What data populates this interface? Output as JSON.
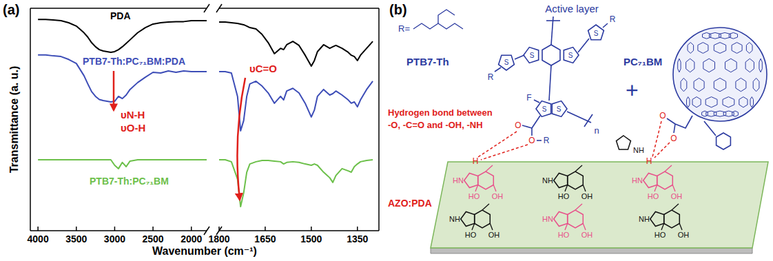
{
  "chart_data": [
    {
      "type": "line",
      "title": "(a)",
      "x_label": "Wavenumber (cm⁻¹)",
      "y_label": "Transmittance (a. u.)",
      "annotations": [
        "υN-H",
        "υO-H"
      ],
      "tick_labels": "x",
      "xlim": [
        4100,
        1800
      ],
      "ylim": [
        0,
        100
      ],
      "xticks": [
        4000,
        3500,
        3000,
        2500,
        2000
      ],
      "x": [
        4000,
        3900,
        3800,
        3700,
        3600,
        3500,
        3400,
        3350,
        3300,
        3250,
        3200,
        3150,
        3100,
        3050,
        3000,
        2950,
        2900,
        2850,
        2800,
        2700,
        2600,
        2500,
        2400,
        2300,
        2200,
        2100,
        2000,
        1900,
        1800
      ],
      "series": [
        {
          "name": "PDA",
          "color": "#000000",
          "values": [
            95,
            95,
            94.7,
            94.4,
            93.5,
            92,
            89,
            87,
            84.5,
            82.7,
            81.4,
            80.8,
            80.5,
            80.2,
            80.5,
            81.4,
            82.7,
            84.2,
            85.8,
            89,
            91.3,
            92.9,
            93.5,
            93.8,
            94,
            94,
            94.4,
            94.4,
            94.4
          ]
        },
        {
          "name": "PTB7-Th:PC₇₁BM:PDA",
          "color": "#3d4db7",
          "values": [
            79,
            79,
            78.6,
            78.3,
            77,
            75.2,
            69.7,
            66,
            62.5,
            60.4,
            59,
            58.5,
            58.2,
            57.9,
            58.2,
            60.4,
            59.4,
            61,
            63.5,
            66.6,
            69,
            71.2,
            70.9,
            71.8,
            71.2,
            71.8,
            71.5,
            71.5,
            71.5
          ]
        },
        {
          "name": "PTB7-Th:PC₇₁BM",
          "color": "#6cc04a",
          "values": [
            31.9,
            31.9,
            31.9,
            31.9,
            31.9,
            31.9,
            31.9,
            31.9,
            31.9,
            31.9,
            31.9,
            31.9,
            31.9,
            31.9,
            29.4,
            27.9,
            30.7,
            28.8,
            31.3,
            31.9,
            31.9,
            31.9,
            31.9,
            31.9,
            31.9,
            31.9,
            31.9,
            31.9,
            31.9
          ]
        }
      ]
    },
    {
      "type": "line",
      "annotations": [
        "υC=O"
      ],
      "tick_labels": "x",
      "xlim": [
        1800,
        1280
      ],
      "ylim": [
        0,
        100
      ],
      "xticks": [
        1800,
        1650,
        1500,
        1350
      ],
      "x": [
        1800,
        1780,
        1760,
        1740,
        1730,
        1720,
        1710,
        1700,
        1680,
        1660,
        1640,
        1620,
        1600,
        1590,
        1580,
        1560,
        1540,
        1520,
        1500,
        1490,
        1480,
        1460,
        1440,
        1430,
        1420,
        1400,
        1380,
        1370,
        1360,
        1350,
        1340,
        1320,
        1300
      ],
      "series": [
        {
          "color": "#000000",
          "values": [
            93.8,
            93.8,
            93.5,
            93.2,
            92.9,
            92.6,
            92,
            91.3,
            90.7,
            88.2,
            84.5,
            79.6,
            82,
            81.4,
            83.6,
            85.1,
            83.3,
            78.9,
            74,
            76.5,
            80.5,
            83.6,
            82,
            82.7,
            83.3,
            82,
            80.2,
            78.9,
            78.3,
            76.5,
            78.9,
            82,
            85.1
          ]
        },
        {
          "color": "#3d4db7",
          "values": [
            71.5,
            71.5,
            70.9,
            60.4,
            44.9,
            49.5,
            60.4,
            66,
            67.2,
            65,
            61.9,
            57.3,
            60.4,
            58.8,
            62.8,
            64,
            61.9,
            57.3,
            51.1,
            54.2,
            60.4,
            63.5,
            61,
            61.6,
            62.8,
            61,
            58.8,
            57.3,
            57.9,
            55.7,
            58.8,
            63.5,
            67.2
          ]
        },
        {
          "color": "#6cc04a",
          "values": [
            31.9,
            31.9,
            31,
            23.2,
            10.8,
            17,
            26.3,
            30,
            31,
            31.6,
            31.6,
            31.3,
            31,
            30,
            30.7,
            31,
            30.7,
            30,
            29.4,
            30,
            29.4,
            26.3,
            23.8,
            21.7,
            24.8,
            27.9,
            26.9,
            26.3,
            28.8,
            30,
            31,
            31.6,
            31.9
          ]
        }
      ]
    }
  ],
  "diagram": {
    "panel_label": "(b)",
    "active_layer": "Active layer",
    "polymer": "PTB7-Th",
    "plus": "+",
    "fullerene": "PC₇₁BM",
    "side_chain": "R=",
    "hbond_title": "Hydrogen bond between",
    "hbond_groups": "-O, -C=O and -OH, -NH",
    "substrate": "AZO:PDA",
    "atoms": {
      "S": "S",
      "F": "F",
      "O": "O",
      "H": "H",
      "R": "R",
      "n": "n",
      "NH": "NH",
      "HN": "HN",
      "HO": "HO",
      "OH": "OH"
    }
  }
}
